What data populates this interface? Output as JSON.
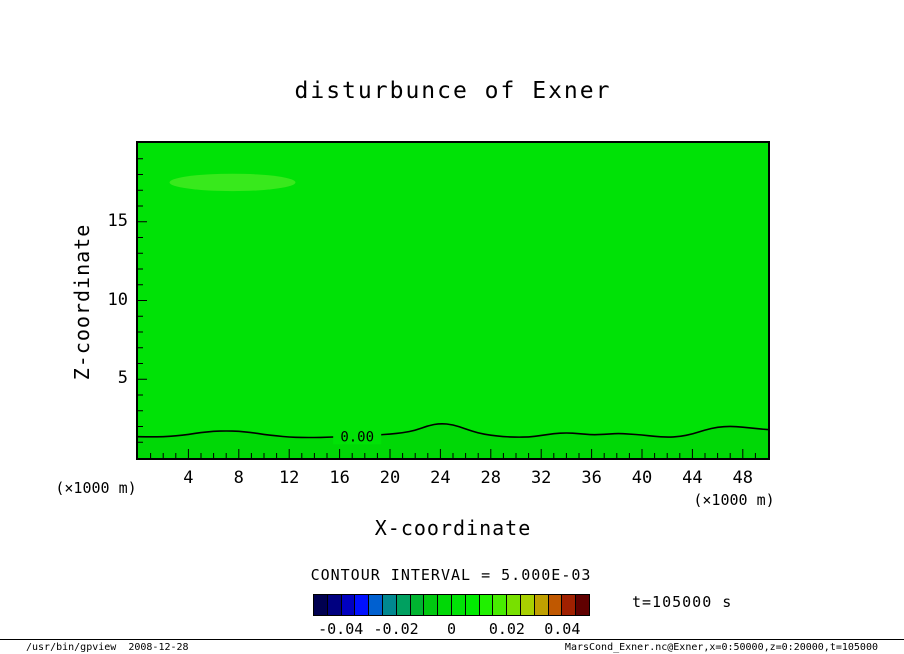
{
  "page": {
    "footer_left": "/usr/bin/gpview  2008-12-28",
    "footer_right": "MarsCond_Exner.nc@Exner,x=0:50000,z=0:20000,t=105000"
  },
  "chart_data": {
    "type": "heatmap",
    "subtype": "filled-contour",
    "title": "disturbunce of Exner",
    "xlabel": "X-coordinate",
    "ylabel": "Z-coordinate",
    "x_unit": "(×1000 m)",
    "y_unit": "(×1000 m)",
    "xlim": [
      0,
      50
    ],
    "ylim": [
      0,
      20
    ],
    "x_ticks": [
      4,
      8,
      12,
      16,
      20,
      24,
      28,
      32,
      36,
      40,
      44,
      48
    ],
    "y_ticks": [
      5,
      10,
      15
    ],
    "grid": false,
    "legend_position": "bottom",
    "fill_color": "#00e206",
    "shade_below_color": "#00d806",
    "patches": [
      {
        "x": 7.5,
        "z": 17.5,
        "rx": 5,
        "rz": 0.55,
        "color": "#38e91c"
      }
    ],
    "contour_interval_label": "CONTOUR INTERVAL = 5.000E-03",
    "time_label": "t=105000 s",
    "contour_zero": {
      "label": "0.00",
      "label_pos": [
        17.4,
        1.38
      ],
      "points": [
        [
          0,
          1.35
        ],
        [
          1,
          1.34
        ],
        [
          2,
          1.35
        ],
        [
          3,
          1.4
        ],
        [
          4,
          1.5
        ],
        [
          5,
          1.62
        ],
        [
          6,
          1.7
        ],
        [
          7,
          1.72
        ],
        [
          8,
          1.7
        ],
        [
          9,
          1.62
        ],
        [
          10,
          1.5
        ],
        [
          11,
          1.4
        ],
        [
          12,
          1.33
        ],
        [
          13,
          1.3
        ],
        [
          14,
          1.3
        ],
        [
          15,
          1.32
        ],
        [
          16,
          1.35
        ],
        [
          17,
          1.38
        ],
        [
          18,
          1.42
        ],
        [
          19,
          1.46
        ],
        [
          20,
          1.52
        ],
        [
          21,
          1.6
        ],
        [
          22,
          1.75
        ],
        [
          23,
          2.05
        ],
        [
          24,
          2.2
        ],
        [
          25,
          2.12
        ],
        [
          26,
          1.85
        ],
        [
          27,
          1.58
        ],
        [
          28,
          1.44
        ],
        [
          29,
          1.36
        ],
        [
          30,
          1.32
        ],
        [
          31,
          1.33
        ],
        [
          32,
          1.42
        ],
        [
          33,
          1.55
        ],
        [
          34,
          1.6
        ],
        [
          35,
          1.55
        ],
        [
          36,
          1.47
        ],
        [
          37,
          1.5
        ],
        [
          38,
          1.56
        ],
        [
          39,
          1.52
        ],
        [
          40,
          1.46
        ],
        [
          41,
          1.37
        ],
        [
          42,
          1.32
        ],
        [
          43,
          1.36
        ],
        [
          44,
          1.52
        ],
        [
          45,
          1.78
        ],
        [
          46,
          1.96
        ],
        [
          47,
          2.02
        ],
        [
          48,
          1.96
        ],
        [
          49,
          1.87
        ],
        [
          50,
          1.8
        ]
      ]
    },
    "colorbar": {
      "min": -0.05,
      "max": 0.05,
      "interval": 0.005,
      "tick_values": [
        -0.04,
        -0.02,
        0,
        0.02,
        0.04
      ],
      "tick_labels": [
        "-0.04",
        "-0.02",
        "0",
        "0.02",
        "0.04"
      ],
      "cell_colors": [
        "#000050",
        "#000080",
        "#0000c0",
        "#0010ff",
        "#0060d0",
        "#008890",
        "#00a060",
        "#00b430",
        "#00c810",
        "#00d806",
        "#00e206",
        "#00ea00",
        "#20f000",
        "#48ec00",
        "#78e000",
        "#a8d000",
        "#c0a000",
        "#c05800",
        "#a02000",
        "#600000"
      ]
    }
  }
}
